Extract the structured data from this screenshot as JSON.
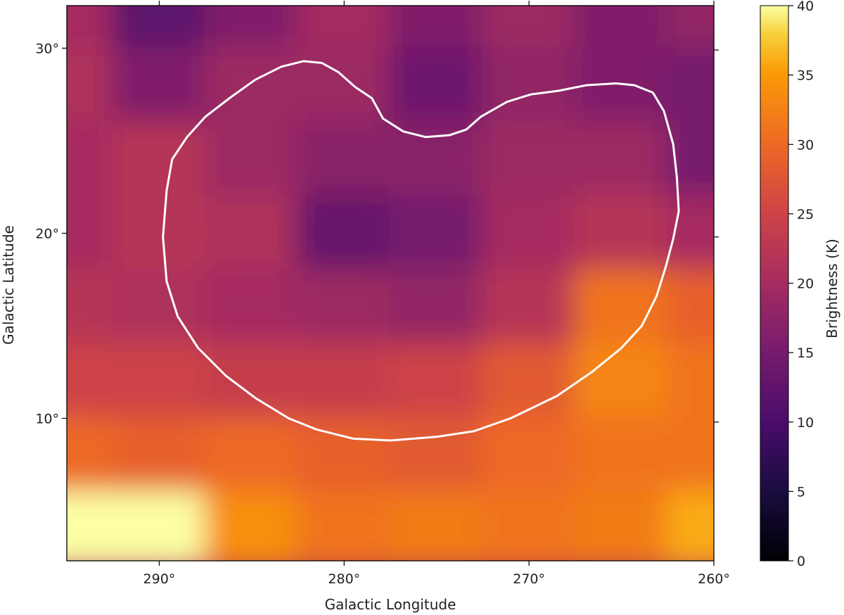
{
  "chart_data": {
    "type": "heatmap",
    "title": "",
    "xlabel": "Galactic Longitude",
    "ylabel": "Galactic Latitude",
    "xlim": [
      295,
      260
    ],
    "ylim": [
      2.3,
      32.3
    ],
    "x_ticks": [
      {
        "value": 290,
        "label": "290°"
      },
      {
        "value": 280,
        "label": "280°"
      },
      {
        "value": 270,
        "label": "270°"
      },
      {
        "value": 260,
        "label": "260°"
      }
    ],
    "y_ticks": [
      {
        "value": 30,
        "label": "30°"
      },
      {
        "value": 20,
        "label": "20°"
      },
      {
        "value": 10,
        "label": "10°"
      }
    ],
    "colormap": "inferno",
    "colorbar": {
      "label": "Brightness (K)",
      "range": [
        0,
        40
      ],
      "ticks": [
        {
          "value": 0,
          "label": "0"
        },
        {
          "value": 5,
          "label": "5"
        },
        {
          "value": 10,
          "label": "10"
        },
        {
          "value": 15,
          "label": "15"
        },
        {
          "value": 20,
          "label": "20"
        },
        {
          "value": 25,
          "label": "25"
        },
        {
          "value": 30,
          "label": "30"
        },
        {
          "value": 35,
          "label": "35"
        },
        {
          "value": 40,
          "label": "40"
        }
      ]
    },
    "brightness_grid": {
      "longitude": [
        295,
        290,
        285,
        280,
        275,
        270,
        265,
        260
      ],
      "latitude": [
        32,
        28,
        24,
        20,
        16,
        12,
        8,
        4
      ],
      "values": [
        [
          20,
          12,
          16,
          20,
          16,
          19,
          16,
          18
        ],
        [
          21,
          16,
          19,
          19,
          14,
          18,
          16,
          15
        ],
        [
          20,
          22,
          19,
          17,
          17,
          19,
          19,
          15
        ],
        [
          20,
          22,
          21,
          13,
          15,
          20,
          22,
          20
        ],
        [
          22,
          21,
          20,
          19,
          18,
          22,
          31,
          29
        ],
        [
          25,
          25,
          24,
          24,
          25,
          28,
          33,
          31
        ],
        [
          30,
          29,
          30,
          29,
          28,
          30,
          31,
          31
        ],
        [
          40,
          40,
          34,
          31,
          32,
          31,
          32,
          36
        ]
      ]
    },
    "contour": {
      "color": "#ffffff",
      "points": [
        [
          277.9,
          26.2
        ],
        [
          276.8,
          25.5
        ],
        [
          275.6,
          25.2
        ],
        [
          274.3,
          25.3
        ],
        [
          273.4,
          25.6
        ],
        [
          272.6,
          26.3
        ],
        [
          271.2,
          27.1
        ],
        [
          269.9,
          27.5
        ],
        [
          268.4,
          27.7
        ],
        [
          266.9,
          28.0
        ],
        [
          265.3,
          28.1
        ],
        [
          264.3,
          28.0
        ],
        [
          263.3,
          27.6
        ],
        [
          262.7,
          26.6
        ],
        [
          262.2,
          24.8
        ],
        [
          262.0,
          23.0
        ],
        [
          261.9,
          21.2
        ],
        [
          262.2,
          19.7
        ],
        [
          262.6,
          18.2
        ],
        [
          263.1,
          16.6
        ],
        [
          263.9,
          15.0
        ],
        [
          265.0,
          13.8
        ],
        [
          266.6,
          12.5
        ],
        [
          268.5,
          11.2
        ],
        [
          271.0,
          10.0
        ],
        [
          273.0,
          9.3
        ],
        [
          275.0,
          9.0
        ],
        [
          277.5,
          8.8
        ],
        [
          279.5,
          8.9
        ],
        [
          281.5,
          9.4
        ],
        [
          283.0,
          10.0
        ],
        [
          284.8,
          11.1
        ],
        [
          286.4,
          12.3
        ],
        [
          287.9,
          13.8
        ],
        [
          289.0,
          15.5
        ],
        [
          289.6,
          17.4
        ],
        [
          289.8,
          19.8
        ],
        [
          289.6,
          22.3
        ],
        [
          289.3,
          24.0
        ],
        [
          288.5,
          25.2
        ],
        [
          287.5,
          26.3
        ],
        [
          286.2,
          27.3
        ],
        [
          284.8,
          28.3
        ],
        [
          283.4,
          29.0
        ],
        [
          282.2,
          29.3
        ],
        [
          281.2,
          29.2
        ],
        [
          280.3,
          28.7
        ],
        [
          279.4,
          27.9
        ],
        [
          278.5,
          27.3
        ],
        [
          277.9,
          26.2
        ]
      ]
    }
  }
}
